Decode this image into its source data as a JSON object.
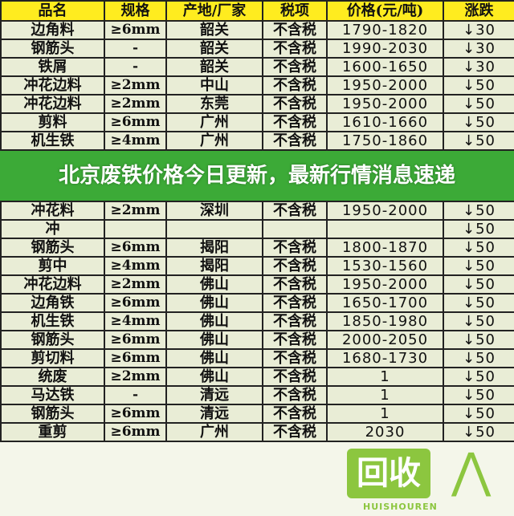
{
  "table": {
    "headers": [
      "品名",
      "规格",
      "产地/厂家",
      "税项",
      "价格(元/吨)",
      "涨跌"
    ],
    "rows": [
      [
        "边角料",
        "≥6mm",
        "韶关",
        "不含税",
        "1790-1820",
        "↓30"
      ],
      [
        "钢筋头",
        "-",
        "韶关",
        "不含税",
        "1990-2030",
        "↓30"
      ],
      [
        "铁屑",
        "-",
        "韶关",
        "不含税",
        "1600-1650",
        "↓30"
      ],
      [
        "冲花边料",
        "≥2mm",
        "中山",
        "不含税",
        "1950-2000",
        "↓50"
      ],
      [
        "冲花边料",
        "≥2mm",
        "东莞",
        "不含税",
        "1950-2000",
        "↓50"
      ],
      [
        "剪料",
        "≥6mm",
        "广州",
        "不含税",
        "1610-1660",
        "↓50"
      ],
      [
        "机生铁",
        "≥4mm",
        "广州",
        "不含税",
        "1750-1860",
        "↓50"
      ],
      [
        "冲花料",
        "≥2mm",
        "深圳",
        "不含税",
        "1950-2000",
        "↓50"
      ],
      [
        "冲",
        "",
        "",
        "",
        "",
        "↓50"
      ],
      [
        "钢筋头",
        "≥6mm",
        "揭阳",
        "不含税",
        "1800-1870",
        "↓50"
      ],
      [
        "剪中",
        "≥4mm",
        "揭阳",
        "不含税",
        "1530-1560",
        "↓50"
      ],
      [
        "冲花边料",
        "≥2mm",
        "佛山",
        "不含税",
        "1950-2000",
        "↓50"
      ],
      [
        "边角铁",
        "≥6mm",
        "佛山",
        "不含税",
        "1650-1700",
        "↓50"
      ],
      [
        "机生铁",
        "≥4mm",
        "佛山",
        "不含税",
        "1850-1980",
        "↓50"
      ],
      [
        "钢筋头",
        "≥6mm",
        "佛山",
        "不含税",
        "2000-2050",
        "↓50"
      ],
      [
        "剪切料",
        "≥6mm",
        "佛山",
        "不含税",
        "1680-1730",
        "↓50"
      ],
      [
        "统废",
        "≥2mm",
        "佛山",
        "不含税",
        "1",
        "↓50"
      ],
      [
        "马达铁",
        "-",
        "清远",
        "不含税",
        "1",
        "↓50"
      ],
      [
        "钢筋头",
        "≥6mm",
        "清远",
        "不含税",
        "1",
        "↓50"
      ],
      [
        "重剪",
        "≥6mm",
        "广州",
        "不含税",
        "2030",
        "↓50"
      ]
    ]
  },
  "banner": {
    "title": "北京废铁价格今日更新，最新行情消息速递"
  },
  "watermark": {
    "logo": "回收",
    "text": "HUISHOUREN"
  },
  "colors": {
    "header": "#ffec1f",
    "cell": "#e9edd6",
    "banner": "#3caa37",
    "logo": "#8cc63f"
  }
}
